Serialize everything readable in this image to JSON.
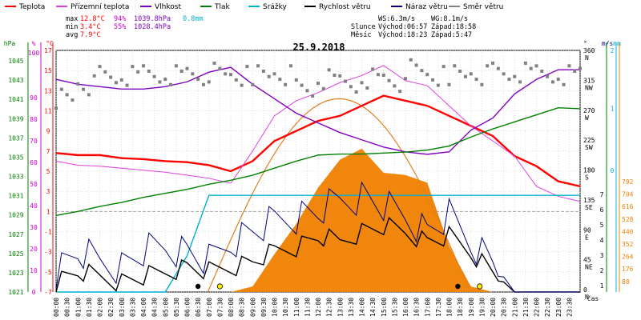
{
  "chart_data": {
    "type": "line",
    "title": "25.9.2018",
    "xlabel": "čas",
    "legend": [
      {
        "name": "Teplota",
        "color": "#ff0000"
      },
      {
        "name": "Přízemní teplota",
        "color": "#e040e0"
      },
      {
        "name": "Vlhkost",
        "color": "#8000c0"
      },
      {
        "name": "Tlak",
        "color": "#008000"
      },
      {
        "name": "Srážky",
        "color": "#00b0d0"
      },
      {
        "name": "Rychlost větru",
        "color": "#000000"
      },
      {
        "name": "Náraz větru",
        "color": "#000080"
      },
      {
        "name": "Směr větru",
        "color": "#808080"
      }
    ],
    "stats": {
      "max_label": "max",
      "min_label": "min",
      "avg_label": "avg",
      "max_temp": "12.8°C",
      "max_hum": "94%",
      "max_press": "1039.8hPa",
      "max_rain": "0.8mm",
      "min_temp": "3.4°C",
      "min_hum": "55%",
      "min_press": "1028.4hPa",
      "avg_temp": "7.9°C",
      "ws": "WS:6.3m/s",
      "wg": "WG:8.1m/s",
      "sun_label": "Slunce",
      "sunrise": "Východ:06:57",
      "sunset": "Západ:18:58",
      "moon_label": "Měsíc",
      "moonrise": "Východ:18:23",
      "moonset": "Západ:5:47"
    },
    "axes": {
      "hpa_unit": "hPa",
      "pct_unit": "%",
      "c_unit": "°C",
      "deg_unit": "°",
      "ms_unit": "m/s",
      "mm_unit": "mm",
      "hpa_ticks": [
        "1045",
        "1043",
        "1041",
        "1039",
        "1037",
        "1035",
        "1033",
        "1031",
        "1029",
        "1027",
        "1025",
        "1023",
        "1021"
      ],
      "pct_ticks": [
        "100",
        "90",
        "80",
        "70",
        "60",
        "50",
        "40",
        "30",
        "20",
        "10",
        "0"
      ],
      "c_ticks": [
        "17",
        "15",
        "13",
        "11",
        "9",
        "7",
        "5",
        "3",
        "1",
        "-1",
        "-3",
        "-5",
        "-7"
      ],
      "deg_ticks": [
        "360",
        "315",
        "270",
        "225",
        "180",
        "135",
        "90",
        "45",
        "0"
      ],
      "dir_ticks": [
        "N",
        "NW",
        "W",
        "SW",
        "S",
        "SE",
        "E",
        "NE",
        "N"
      ],
      "ms_ticks": [
        "2",
        "1",
        "0"
      ],
      "ms_right_ticks": [
        "7",
        "6",
        "5",
        "4",
        "3",
        "2",
        "1"
      ],
      "solar_ticks": [
        "792",
        "704",
        "616",
        "528",
        "440",
        "352",
        "264",
        "176",
        "88"
      ],
      "x_ticks": [
        "00:00",
        "00:30",
        "01:00",
        "01:30",
        "02:00",
        "02:30",
        "03:00",
        "03:30",
        "04:00",
        "04:30",
        "05:00",
        "05:30",
        "06:00",
        "06:30",
        "07:00",
        "07:30",
        "08:00",
        "08:30",
        "09:00",
        "09:30",
        "10:00",
        "10:30",
        "11:00",
        "11:30",
        "12:00",
        "12:30",
        "13:00",
        "13:30",
        "14:00",
        "14:30",
        "15:00",
        "15:30",
        "16:00",
        "16:30",
        "17:00",
        "17:30",
        "18:00",
        "18:30",
        "19:00",
        "19:30",
        "20:00",
        "20:30",
        "21:00",
        "21:30",
        "22:00",
        "22:30",
        "23:00",
        "23:30"
      ]
    },
    "x_hours": [
      0,
      1,
      2,
      3,
      4,
      5,
      6,
      7,
      8,
      9,
      10,
      11,
      12,
      13,
      14,
      15,
      16,
      17,
      18,
      19,
      20,
      21,
      22,
      23,
      24
    ],
    "series": [
      {
        "name": "Teplota",
        "color": "#ff0000",
        "axis": "c",
        "values": [
          6.8,
          6.6,
          6.6,
          6.3,
          6.2,
          6.0,
          5.9,
          5.6,
          5.0,
          6.0,
          8.0,
          9.0,
          10.0,
          10.5,
          11.5,
          12.5,
          12.0,
          11.5,
          10.5,
          9.5,
          8.5,
          6.5,
          5.5,
          4.0,
          3.5
        ]
      },
      {
        "name": "Přízemní teplota",
        "color": "#e040e0",
        "axis": "c",
        "values": [
          6.0,
          5.6,
          5.5,
          5.3,
          5.1,
          4.9,
          4.6,
          4.3,
          3.8,
          7.0,
          10.5,
          12.0,
          12.8,
          13.8,
          14.5,
          15.5,
          14.0,
          13.5,
          11.5,
          9.5,
          8.0,
          6.5,
          3.5,
          2.5,
          2.0
        ]
      },
      {
        "name": "Vlhkost",
        "color": "#8000c0",
        "axis": "pct",
        "values": [
          88,
          86,
          85,
          84,
          84,
          85,
          87,
          91,
          93,
          86,
          80,
          74,
          70,
          66,
          63,
          60,
          58,
          57,
          58,
          67,
          72,
          82,
          88,
          92,
          92
        ]
      },
      {
        "name": "Tlak",
        "color": "#008000",
        "axis": "hpa",
        "values": [
          1028.6,
          1029.0,
          1029.5,
          1029.9,
          1030.4,
          1030.8,
          1031.2,
          1031.7,
          1032.1,
          1032.6,
          1033.3,
          1034.0,
          1034.6,
          1034.7,
          1034.7,
          1034.8,
          1034.9,
          1035.1,
          1035.5,
          1036.4,
          1037.2,
          1037.9,
          1038.6,
          1039.3,
          1039.2
        ]
      },
      {
        "name": "Srážky",
        "color": "#00b0d0",
        "axis": "mm",
        "values": [
          0,
          0,
          0,
          0,
          0,
          0,
          0.3,
          0.8,
          0.8,
          0.8,
          0.8,
          0.8,
          0.8,
          0.8,
          0.8,
          0.8,
          0.8,
          0.8,
          0.8,
          0.8,
          0.8,
          0.8,
          0.8,
          0.8,
          0.8
        ]
      },
      {
        "name": "Rychlost větru",
        "color": "#000000",
        "axis": "c",
        "values": [
          -6,
          -5,
          -5.5,
          -6,
          -5.5,
          -5,
          -4.5,
          -5,
          -4.5,
          -4,
          -3,
          -2.5,
          -1.5,
          -2,
          -1,
          -0.5,
          -1,
          -2,
          -1.5,
          -3,
          -5,
          -7,
          -7,
          -7,
          -7
        ]
      },
      {
        "name": "Náraz větru",
        "color": "#000080",
        "axis": "c",
        "values": [
          -5,
          -3,
          -4,
          -4.5,
          -3,
          -2.5,
          -3,
          -4,
          -2,
          -1,
          0,
          0.5,
          1,
          2,
          2.5,
          1.5,
          0.5,
          -1,
          0.5,
          -2,
          -4,
          -7,
          -7,
          -7,
          -7
        ]
      },
      {
        "name": "Směr větru",
        "color": "#808080",
        "axis": "deg",
        "values": [
          290,
          310,
          320,
          320,
          325,
          325,
          325,
          325,
          320,
          325,
          325,
          300,
          315,
          310,
          320,
          315,
          330,
          320,
          325,
          325,
          325,
          325,
          325,
          325,
          325
        ]
      }
    ],
    "solar": {
      "color": "#f08000",
      "values": [
        0,
        0,
        0,
        0,
        0,
        0,
        0,
        0,
        0,
        20,
        120,
        260,
        380,
        470,
        540,
        440,
        420,
        380,
        180,
        20,
        0,
        0,
        0,
        0,
        0
      ]
    },
    "solar_arc": {
      "color": "#e08020",
      "sunrise_h": 6.95,
      "sunset_h": 18.97,
      "peak": 704
    },
    "ylim": {
      "c": [
        -7,
        17
      ],
      "hpa": [
        1021,
        1045
      ],
      "pct": [
        0,
        100
      ],
      "deg": [
        0,
        360
      ],
      "mm": [
        0,
        2
      ],
      "solar": [
        0,
        880
      ]
    },
    "grid": true
  }
}
